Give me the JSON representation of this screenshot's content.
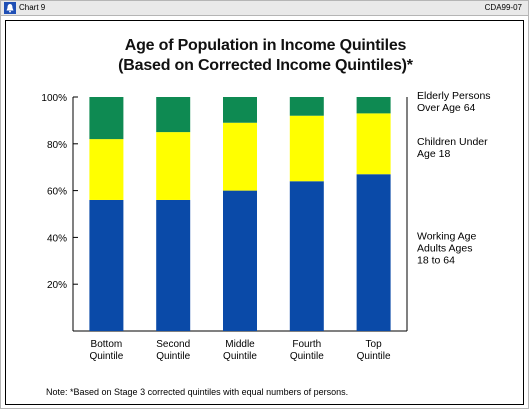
{
  "window": {
    "label": "Chart 9",
    "code": "CDA99-07"
  },
  "chart_data": {
    "type": "bar",
    "stacked": true,
    "title": "Age of Population in Income Quintiles",
    "subtitle": "(Based on Corrected Income Quintiles)*",
    "categories": [
      [
        "Bottom",
        "Quintile"
      ],
      [
        "Second",
        "Quintile"
      ],
      [
        "Middle",
        "Quintile"
      ],
      [
        "Fourth",
        "Quintile"
      ],
      [
        "Top",
        "Quintile"
      ]
    ],
    "series": [
      {
        "name": "Working Age Adults Ages 18 to 64",
        "label_lines": [
          "Working Age",
          "Adults Ages",
          "18 to 64"
        ],
        "color": "#0a4aa8",
        "values": [
          56,
          56,
          60,
          64,
          67
        ]
      },
      {
        "name": "Children Under Age 18",
        "label_lines": [
          "Children Under",
          "Age 18"
        ],
        "color": "#ffff00",
        "values": [
          26,
          29,
          29,
          28,
          26
        ]
      },
      {
        "name": "Elderly Persons Over Age 64",
        "label_lines": [
          "Elderly Persons",
          "Over Age 64"
        ],
        "color": "#0e8a52",
        "values": [
          18,
          15,
          11,
          8,
          7
        ]
      }
    ],
    "yticks": [
      "20%",
      "40%",
      "60%",
      "80%",
      "100%"
    ],
    "ytick_values": [
      20,
      40,
      60,
      80,
      100
    ],
    "ylim": [
      0,
      100
    ],
    "grid": false,
    "legend": "right, labels beside the stacked segments",
    "note": "Note: *Based on Stage 3 corrected quintiles with equal numbers of persons."
  }
}
